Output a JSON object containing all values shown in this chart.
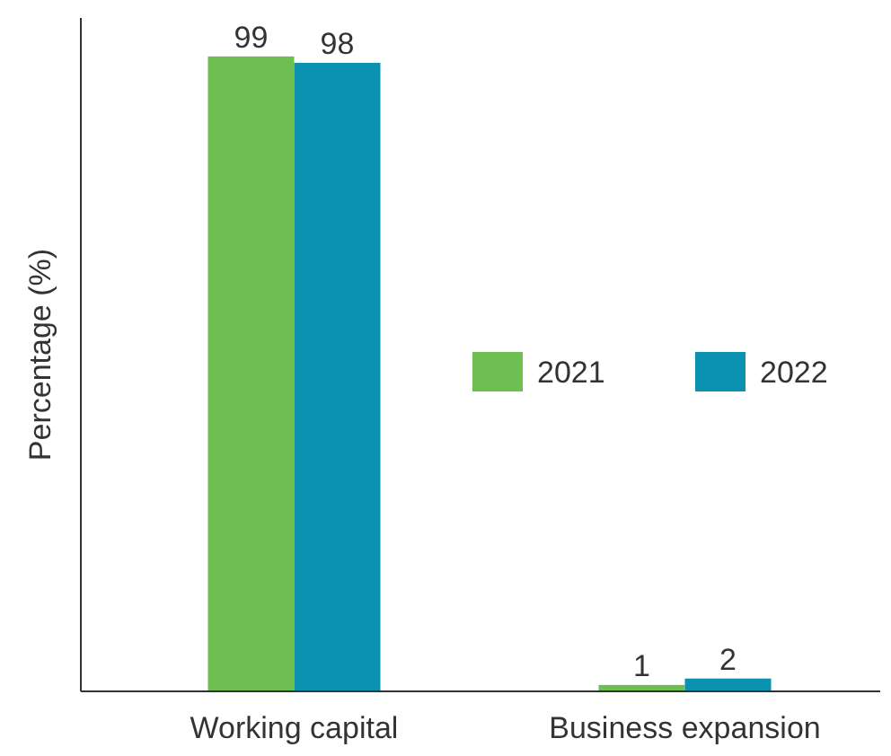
{
  "chart_data": {
    "type": "bar",
    "ylabel": "Percentage (%)",
    "categories": [
      "Working capital",
      "Business expansion"
    ],
    "series": [
      {
        "name": "2021",
        "color": "#6cbf50",
        "values": [
          99,
          1
        ]
      },
      {
        "name": "2022",
        "color": "#0b92b0",
        "values": [
          98,
          2
        ]
      }
    ],
    "ylim": [
      0,
      105
    ],
    "data_labels": true,
    "legend": "right"
  }
}
